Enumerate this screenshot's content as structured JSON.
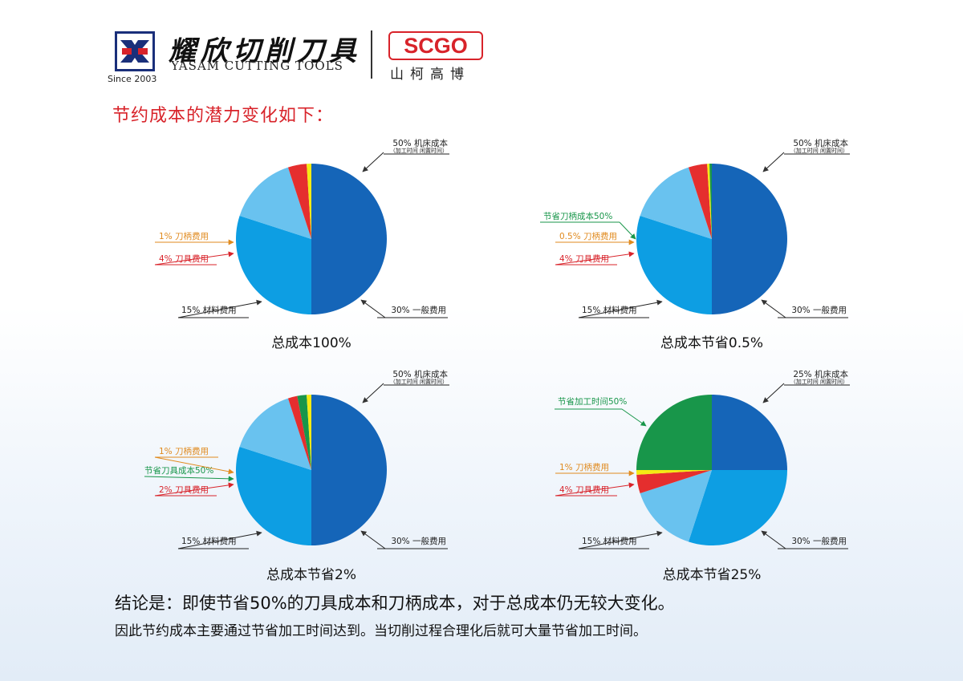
{
  "header": {
    "since": "Since 2003",
    "brand_cn": "耀欣切削刀具",
    "brand_en": "YASAM CUTTING TOOLS",
    "partner_logo": "SCGO",
    "partner_cn": "山柯高博"
  },
  "headline": "节约成本的潜力变化如下：",
  "conclusion": {
    "line1": "结论是：即使节省50%的刀具成本和刀柄成本，对于总成本仍无较大变化。",
    "line2": "因此节约成本主要通过节省加工时间达到。当切削过程合理化后就可大量节省加工时间。"
  },
  "colors": {
    "machine": "#1565b8",
    "general": "#0d9ee3",
    "material": "#69c2ef",
    "tool": "#e52e2e",
    "holder": "#f4ea14",
    "saving": "#18964a",
    "label_orange": "#e08a1e",
    "label_red": "#d8232a",
    "label_green": "#18964a"
  },
  "chart_data": [
    {
      "type": "pie",
      "title": "总成本100%",
      "slices": [
        {
          "key": "machine",
          "value": 50,
          "label": "50% 机床成本",
          "sublabel": "（加工时间 闲置时间）",
          "color": "#1565b8"
        },
        {
          "key": "general",
          "value": 30,
          "label": "30% 一般费用",
          "color": "#0d9ee3"
        },
        {
          "key": "material",
          "value": 15,
          "label": "15% 材料费用",
          "color": "#69c2ef"
        },
        {
          "key": "tool",
          "value": 4,
          "label": "4% 刀具费用",
          "color": "#e52e2e"
        },
        {
          "key": "holder",
          "value": 1,
          "label": "1% 刀柄费用",
          "color": "#f4ea14"
        }
      ]
    },
    {
      "type": "pie",
      "title": "总成本节省0.5%",
      "slices": [
        {
          "key": "machine",
          "value": 50,
          "label": "50% 机床成本",
          "sublabel": "（加工时间 闲置时间）",
          "color": "#1565b8"
        },
        {
          "key": "general",
          "value": 30,
          "label": "30% 一般费用",
          "color": "#0d9ee3"
        },
        {
          "key": "material",
          "value": 15,
          "label": "15% 材料费用",
          "color": "#69c2ef"
        },
        {
          "key": "tool",
          "value": 4,
          "label": "4% 刀具费用",
          "color": "#e52e2e"
        },
        {
          "key": "holder",
          "value": 0.5,
          "label": "0.5% 刀柄费用",
          "color": "#f4ea14"
        },
        {
          "key": "saving",
          "value": 0.5,
          "label": "节省刀柄成本50%",
          "color": "#18964a"
        }
      ]
    },
    {
      "type": "pie",
      "title": "总成本节省2%",
      "slices": [
        {
          "key": "machine",
          "value": 50,
          "label": "50% 机床成本",
          "sublabel": "（加工时间 闲置时间）",
          "color": "#1565b8"
        },
        {
          "key": "general",
          "value": 30,
          "label": "30% 一般费用",
          "color": "#0d9ee3"
        },
        {
          "key": "material",
          "value": 15,
          "label": "15% 材料费用",
          "color": "#69c2ef"
        },
        {
          "key": "tool",
          "value": 2,
          "label": "2% 刀具费用",
          "color": "#e52e2e"
        },
        {
          "key": "saving",
          "value": 2,
          "label": "节省刀具成本50%",
          "color": "#18964a"
        },
        {
          "key": "holder",
          "value": 1,
          "label": "1% 刀柄费用",
          "color": "#f4ea14"
        }
      ]
    },
    {
      "type": "pie",
      "title": "总成本节省25%",
      "slices": [
        {
          "key": "machine",
          "value": 25,
          "label": "25% 机床成本",
          "sublabel": "（加工时间 闲置时间）",
          "color": "#1565b8"
        },
        {
          "key": "general",
          "value": 30,
          "label": "30% 一般费用",
          "color": "#0d9ee3"
        },
        {
          "key": "material",
          "value": 15,
          "label": "15% 材料费用",
          "color": "#69c2ef"
        },
        {
          "key": "tool",
          "value": 4,
          "label": "4% 刀具费用",
          "color": "#e52e2e"
        },
        {
          "key": "holder",
          "value": 1,
          "label": "1% 刀柄费用",
          "color": "#f4ea14"
        },
        {
          "key": "saving",
          "value": 25,
          "label": "节省加工时间50%",
          "color": "#18964a"
        }
      ]
    }
  ]
}
